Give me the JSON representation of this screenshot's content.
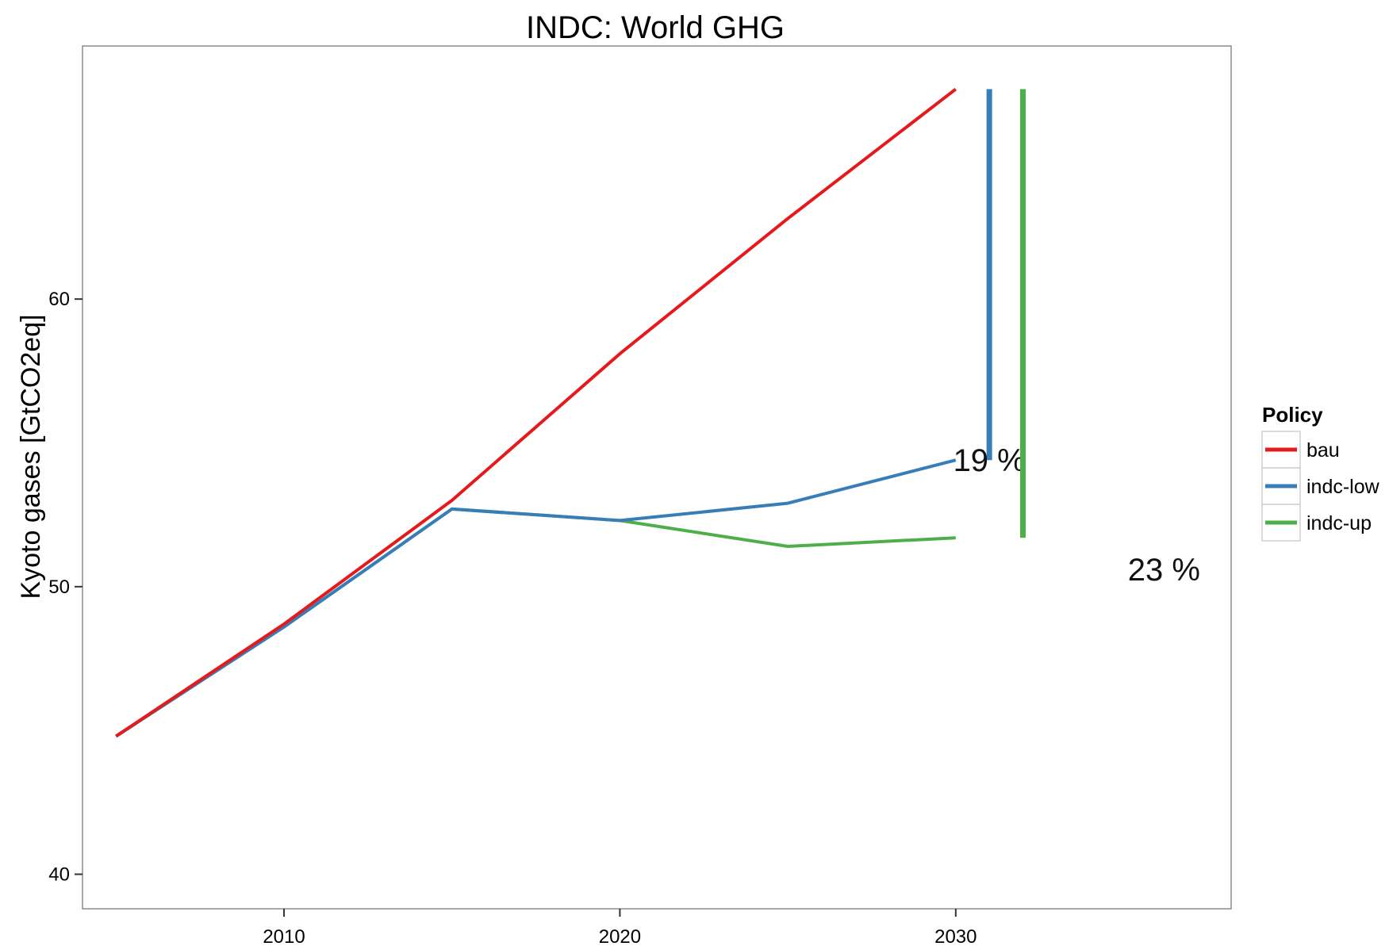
{
  "chart_data": {
    "type": "line",
    "title": "INDC: World GHG",
    "ylabel": "Kyoto gases [GtCO2eq]",
    "xlabel": "",
    "xlim": [
      2004,
      2038.2
    ],
    "ylim": [
      38.8,
      68.8
    ],
    "xticks": [
      2010,
      2020,
      2030
    ],
    "yticks": [
      40,
      50,
      60
    ],
    "grid": false,
    "legend": {
      "title": "Policy",
      "position": "right"
    },
    "series": [
      {
        "name": "bau",
        "color": "#e41a1c",
        "points": [
          [
            2005,
            44.8
          ],
          [
            2010,
            48.7
          ],
          [
            2015,
            53.0
          ],
          [
            2020,
            58.1
          ],
          [
            2025,
            62.8
          ],
          [
            2030,
            67.3
          ]
        ]
      },
      {
        "name": "indc-low",
        "color": "#377eb8",
        "points": [
          [
            2005,
            44.8
          ],
          [
            2010,
            48.6
          ],
          [
            2015,
            52.7
          ],
          [
            2020,
            52.3
          ],
          [
            2025,
            52.9
          ],
          [
            2030,
            54.4
          ]
        ]
      },
      {
        "name": "indc-up",
        "color": "#4daf4a",
        "points": [
          [
            2005,
            44.8
          ],
          [
            2010,
            48.6
          ],
          [
            2015,
            52.7
          ],
          [
            2020,
            52.3
          ],
          [
            2025,
            51.4
          ],
          [
            2030,
            51.7
          ]
        ]
      }
    ],
    "reduction_bars": [
      {
        "series": "indc-low",
        "x": 2031,
        "y_from": 54.4,
        "y_to": 67.3,
        "label": "19 %",
        "label_x": 2031,
        "label_y": 54.4
      },
      {
        "series": "indc-up",
        "x": 2032,
        "y_from": 51.7,
        "y_to": 67.3,
        "label": "23 %",
        "label_x": 2036.2,
        "label_y": 50.6
      }
    ]
  }
}
